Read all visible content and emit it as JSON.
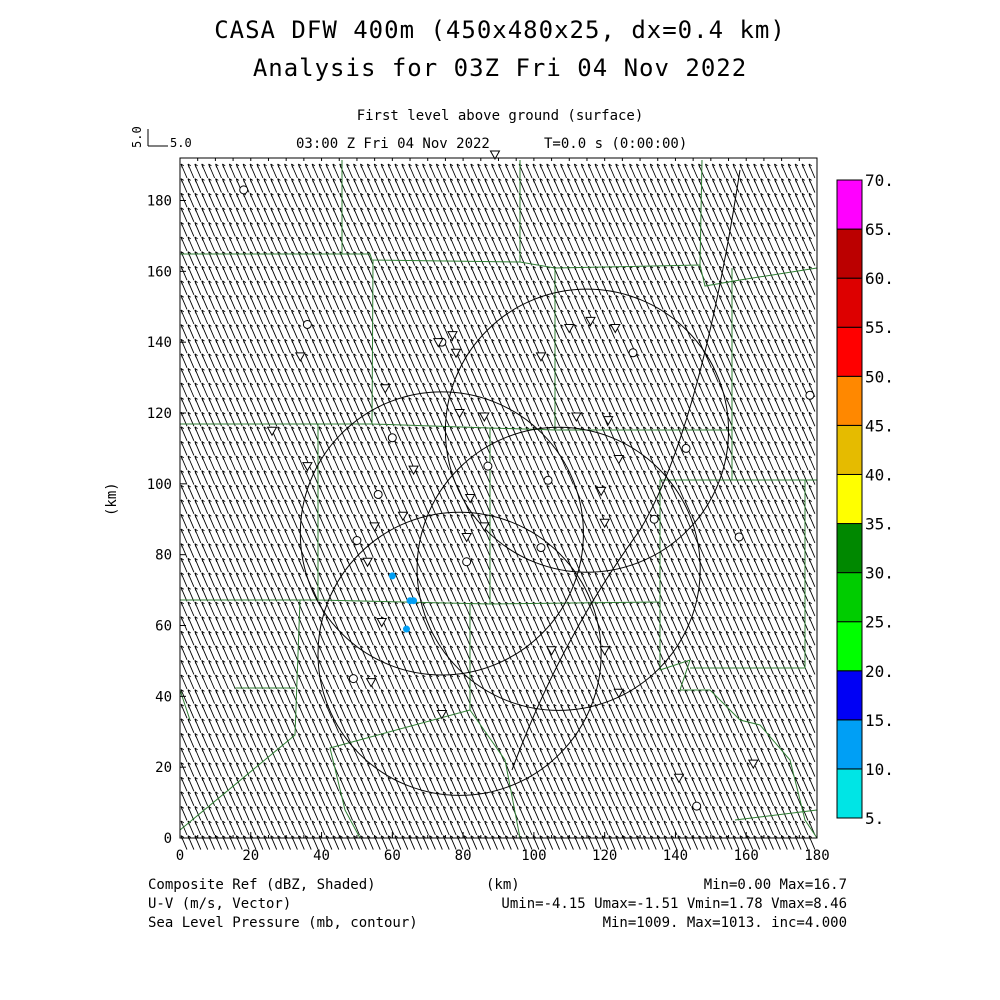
{
  "title": {
    "line1": "CASA DFW 400m (450x480x25, dx=0.4 km)",
    "line2": "Analysis for 03Z Fri 04 Nov 2022"
  },
  "subtitle": {
    "level": "First level above ground (surface)",
    "time": "03:00 Z Fri 04 Nov 2022",
    "t": "T=0.0 s (0:00:00)"
  },
  "vector_ref": {
    "vertical": "5.0",
    "horizontal": "5.0"
  },
  "axes": {
    "x_label": "(km)",
    "y_label": "(km)",
    "x_ticks": [
      "0",
      "20",
      "40",
      "60",
      "80",
      "100",
      "120",
      "140",
      "160",
      "180"
    ],
    "y_ticks": [
      "0",
      "20",
      "40",
      "60",
      "80",
      "100",
      "120",
      "140",
      "160",
      "180"
    ],
    "x_range": [
      0,
      180
    ],
    "y_range": [
      0,
      192
    ]
  },
  "colorbar": {
    "labels": [
      "5.",
      "10.",
      "15.",
      "20.",
      "25.",
      "30.",
      "35.",
      "40.",
      "45.",
      "50.",
      "55.",
      "60.",
      "65.",
      "70."
    ],
    "colors": [
      "#00e5e5",
      "#009ff5",
      "#0000f5",
      "#00ff00",
      "#00cc00",
      "#008800",
      "#ffff00",
      "#e5bb00",
      "#ff8800",
      "#ff0000",
      "#dd0000",
      "#bb0000",
      "#ff00ff"
    ]
  },
  "footer": {
    "left1": "Composite Ref (dBZ, Shaded)",
    "left2": "U-V (m/s, Vector)",
    "left3": "Sea Level Pressure (mb, contour)",
    "center": "(km)",
    "right1": "Min=0.00 Max=16.7",
    "right2": "Umin=-4.15 Umax=-1.51 Vmin=1.78 Vmax=8.46",
    "right3": "Min=1009. Max=1013. inc=4.000"
  },
  "radar_circles_km": [
    {
      "cx": 79,
      "cy": 52,
      "r": 40
    },
    {
      "cx": 74,
      "cy": 86,
      "r": 40
    },
    {
      "cx": 115,
      "cy": 115,
      "r": 40
    },
    {
      "cx": 107,
      "cy": 76,
      "r": 40
    }
  ],
  "reflectivity_points_km": [
    {
      "x": 60,
      "y": 74
    },
    {
      "x": 65,
      "y": 67
    },
    {
      "x": 66,
      "y": 67
    },
    {
      "x": 64,
      "y": 59
    }
  ],
  "station_circles_km": [
    [
      18,
      183
    ],
    [
      36,
      145
    ],
    [
      60,
      113
    ],
    [
      56,
      97
    ],
    [
      50,
      84
    ],
    [
      81,
      78
    ],
    [
      87,
      105
    ],
    [
      104,
      101
    ],
    [
      102,
      82
    ],
    [
      128,
      137
    ],
    [
      134,
      90
    ],
    [
      143,
      110
    ],
    [
      158,
      85
    ],
    [
      178,
      125
    ],
    [
      49,
      45
    ],
    [
      146,
      9
    ],
    [
      74,
      140
    ]
  ],
  "station_triangles_km": [
    [
      34,
      136
    ],
    [
      26,
      115
    ],
    [
      36,
      105
    ],
    [
      58,
      127
    ],
    [
      63,
      91
    ],
    [
      66,
      104
    ],
    [
      79,
      120
    ],
    [
      86,
      119
    ],
    [
      82,
      96
    ],
    [
      86,
      88
    ],
    [
      105,
      53
    ],
    [
      120,
      53
    ],
    [
      124,
      41
    ],
    [
      74,
      35
    ],
    [
      112,
      119
    ],
    [
      121,
      118
    ],
    [
      124,
      107
    ],
    [
      119,
      98
    ],
    [
      120,
      89
    ],
    [
      116,
      146
    ],
    [
      123,
      144
    ],
    [
      110,
      144
    ],
    [
      102,
      136
    ],
    [
      78,
      137
    ],
    [
      77,
      142
    ],
    [
      73,
      140
    ],
    [
      89,
      193
    ],
    [
      57,
      61
    ],
    [
      55,
      88
    ],
    [
      53,
      78
    ],
    [
      54,
      44
    ],
    [
      141,
      17
    ],
    [
      162,
      21
    ],
    [
      81,
      85
    ]
  ]
}
